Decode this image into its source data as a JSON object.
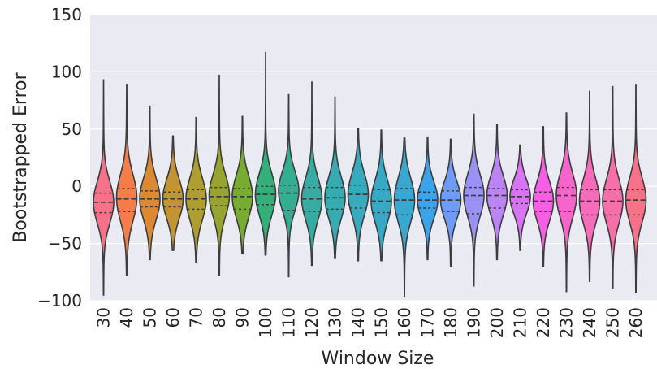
{
  "chart_data": {
    "type": "violin",
    "title": "",
    "xlabel": "Window Size",
    "ylabel": "Bootstrapped Error",
    "ylim": [
      -100,
      150
    ],
    "yticks": [
      -100,
      -50,
      0,
      50,
      100,
      150
    ],
    "grid": "horizontal",
    "legend": "none",
    "background": "#eaeaf2",
    "categories": [
      "30",
      "40",
      "50",
      "60",
      "70",
      "80",
      "90",
      "100",
      "110",
      "120",
      "130",
      "140",
      "150",
      "160",
      "170",
      "180",
      "190",
      "200",
      "210",
      "220",
      "230",
      "240",
      "250",
      "260"
    ],
    "colors": [
      "#f77189",
      "#f47d49",
      "#dc8932",
      "#c39532",
      "#ae9d31",
      "#97a431",
      "#77ab31",
      "#33b07a",
      "#34ae92",
      "#35aca4",
      "#36abb2",
      "#37aabd",
      "#38a9c5",
      "#39a7d0",
      "#3ba3ec",
      "#6e9bf4",
      "#9b91f4",
      "#bb83f4",
      "#d874f3",
      "#f45fe3",
      "#f565cc",
      "#f66bba",
      "#f76fa8",
      "#f77189"
    ],
    "series": [
      {
        "name": "30",
        "min": -95,
        "max": 93,
        "q1": -23,
        "median": -14,
        "q3": -6,
        "mode": -14,
        "spread": 18
      },
      {
        "name": "40",
        "min": -78,
        "max": 89,
        "q1": -22,
        "median": -11,
        "q3": -2,
        "mode": -10,
        "spread": 20
      },
      {
        "name": "50",
        "min": -64,
        "max": 70,
        "q1": -18,
        "median": -11,
        "q3": -4,
        "mode": -11,
        "spread": 18
      },
      {
        "name": "60",
        "min": -56,
        "max": 44,
        "q1": -18,
        "median": -11,
        "q3": -5,
        "mode": -11,
        "spread": 17
      },
      {
        "name": "70",
        "min": -66,
        "max": 60,
        "q1": -20,
        "median": -11,
        "q3": -3,
        "mode": -11,
        "spread": 18
      },
      {
        "name": "80",
        "min": -78,
        "max": 97,
        "q1": -17,
        "median": -9,
        "q3": -1,
        "mode": -8,
        "spread": 18
      },
      {
        "name": "90",
        "min": -59,
        "max": 61,
        "q1": -20,
        "median": -9,
        "q3": -2,
        "mode": -9,
        "spread": 18
      },
      {
        "name": "100",
        "min": -60,
        "max": 117,
        "q1": -16,
        "median": -7,
        "q3": 0,
        "mode": -7,
        "spread": 18
      },
      {
        "name": "110",
        "min": -79,
        "max": 80,
        "q1": -21,
        "median": -6,
        "q3": 1,
        "mode": -4,
        "spread": 17
      },
      {
        "name": "120",
        "min": -69,
        "max": 91,
        "q1": -22,
        "median": -11,
        "q3": -1,
        "mode": -11,
        "spread": 18
      },
      {
        "name": "130",
        "min": -63,
        "max": 78,
        "q1": -20,
        "median": -10,
        "q3": -1,
        "mode": -10,
        "spread": 18
      },
      {
        "name": "140",
        "min": -65,
        "max": 50,
        "q1": -19,
        "median": -7,
        "q3": 1,
        "mode": -7,
        "spread": 18
      },
      {
        "name": "150",
        "min": -65,
        "max": 49,
        "q1": -23,
        "median": -13,
        "q3": -3,
        "mode": -13,
        "spread": 18
      },
      {
        "name": "160",
        "min": -96,
        "max": 42,
        "q1": -25,
        "median": -12,
        "q3": -2,
        "mode": -12,
        "spread": 19
      },
      {
        "name": "170",
        "min": -64,
        "max": 43,
        "q1": -19,
        "median": -12,
        "q3": -5,
        "mode": -12,
        "spread": 16
      },
      {
        "name": "180",
        "min": -70,
        "max": 41,
        "q1": -22,
        "median": -12,
        "q3": -4,
        "mode": -12,
        "spread": 16
      },
      {
        "name": "190",
        "min": -87,
        "max": 63,
        "q1": -24,
        "median": -8,
        "q3": -1,
        "mode": -8,
        "spread": 18
      },
      {
        "name": "200",
        "min": -64,
        "max": 54,
        "q1": -19,
        "median": -8,
        "q3": -2,
        "mode": -8,
        "spread": 17
      },
      {
        "name": "210",
        "min": -56,
        "max": 36,
        "q1": -15,
        "median": -9,
        "q3": -3,
        "mode": -9,
        "spread": 15
      },
      {
        "name": "220",
        "min": -70,
        "max": 52,
        "q1": -22,
        "median": -13,
        "q3": -5,
        "mode": -13,
        "spread": 17
      },
      {
        "name": "230",
        "min": -92,
        "max": 64,
        "q1": -22,
        "median": -8,
        "q3": -1,
        "mode": -8,
        "spread": 19
      },
      {
        "name": "240",
        "min": -83,
        "max": 83,
        "q1": -25,
        "median": -13,
        "q3": -3,
        "mode": -13,
        "spread": 19
      },
      {
        "name": "250",
        "min": -89,
        "max": 87,
        "q1": -25,
        "median": -13,
        "q3": -3,
        "mode": -13,
        "spread": 19
      },
      {
        "name": "260",
        "min": -93,
        "max": 89,
        "q1": -25,
        "median": -12,
        "q3": -3,
        "mode": -12,
        "spread": 19
      }
    ]
  }
}
